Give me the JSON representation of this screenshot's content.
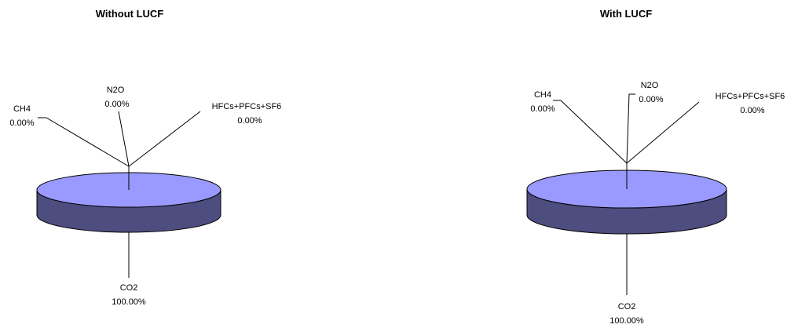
{
  "chart_data": [
    {
      "type": "pie",
      "title": "Without LUCF",
      "categories": [
        "CO2",
        "CH4",
        "N2O",
        "HFCs+PFCs+SF6"
      ],
      "values": [
        100.0,
        0.0,
        0.0,
        0.0
      ],
      "value_labels": [
        "100.00%",
        "0.00%",
        "0.00%",
        "0.00%"
      ],
      "colors": {
        "top": "#9999ff",
        "side": "#4d4d80"
      }
    },
    {
      "type": "pie",
      "title": "With LUCF",
      "categories": [
        "CO2",
        "CH4",
        "N2O",
        "HFCs+PFCs+SF6"
      ],
      "values": [
        100.0,
        0.0,
        0.0,
        0.0
      ],
      "value_labels": [
        "100.00%",
        "0.00%",
        "0.00%",
        "0.00%"
      ],
      "colors": {
        "top": "#9999ff",
        "side": "#4d4d80"
      }
    }
  ]
}
